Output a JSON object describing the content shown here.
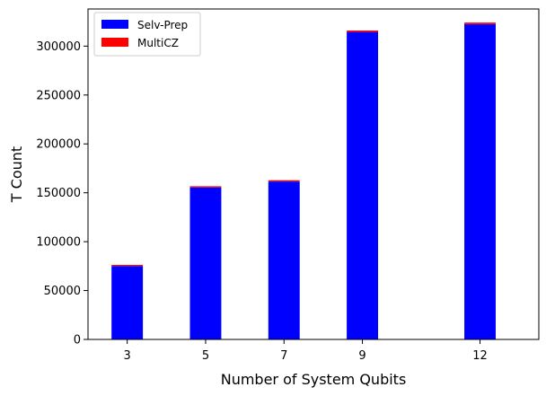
{
  "chart_data": {
    "type": "bar",
    "stacked": true,
    "categories": [
      3,
      5,
      7,
      9,
      12
    ],
    "series": [
      {
        "name": "Selv-Prep",
        "color": "#0000ff",
        "values": [
          75000,
          155500,
          161500,
          314500,
          322500
        ]
      },
      {
        "name": "MultiCZ",
        "color": "#ff0000",
        "values": [
          1200,
          1200,
          1300,
          1500,
          1600
        ]
      }
    ],
    "title": "",
    "xlabel": "Number of System Qubits",
    "ylabel": "T Count",
    "xlim": [
      2,
      13.5
    ],
    "ylim": [
      0,
      338000
    ],
    "x_ticks": [
      "3",
      "5",
      "7",
      "9",
      "12"
    ],
    "y_ticks": [
      "0",
      "50000",
      "100000",
      "150000",
      "200000",
      "250000",
      "300000"
    ],
    "grid": false,
    "legend_position": "top-left"
  }
}
